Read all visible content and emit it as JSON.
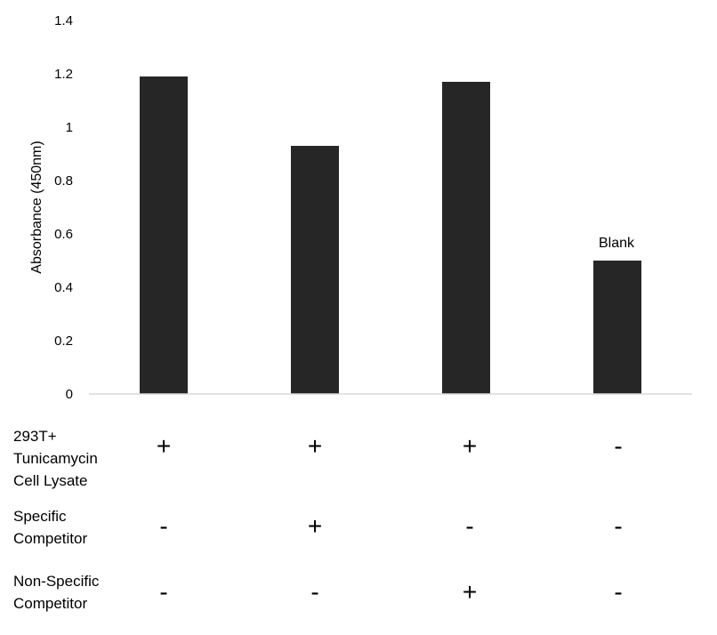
{
  "chart_data": {
    "type": "bar",
    "title": "",
    "xlabel": "",
    "ylabel": "Absorbance (450nm)",
    "ylim": [
      0,
      1.4
    ],
    "yticks": [
      "0",
      "0.2",
      "0.4",
      "0.6",
      "0.8",
      "1",
      "1.2",
      "1.4"
    ],
    "grid": false,
    "legend": "none",
    "bar_color": "#262626",
    "categories": [
      "1",
      "2",
      "3",
      "4"
    ],
    "values": [
      1.19,
      0.93,
      1.17,
      0.5
    ],
    "bar_annotations": [
      "",
      "",
      "",
      "Blank"
    ],
    "conditions": [
      {
        "label": [
          "293T+",
          "Tunicamycin",
          "Cell Lysate"
        ],
        "marks": [
          "+",
          "+",
          "+",
          "-"
        ]
      },
      {
        "label": [
          "Specific",
          "Competitor"
        ],
        "marks": [
          "-",
          "+",
          "-",
          "-"
        ]
      },
      {
        "label": [
          "Non-Specific",
          "Competitor"
        ],
        "marks": [
          "-",
          "-",
          "+",
          "-"
        ]
      }
    ]
  }
}
